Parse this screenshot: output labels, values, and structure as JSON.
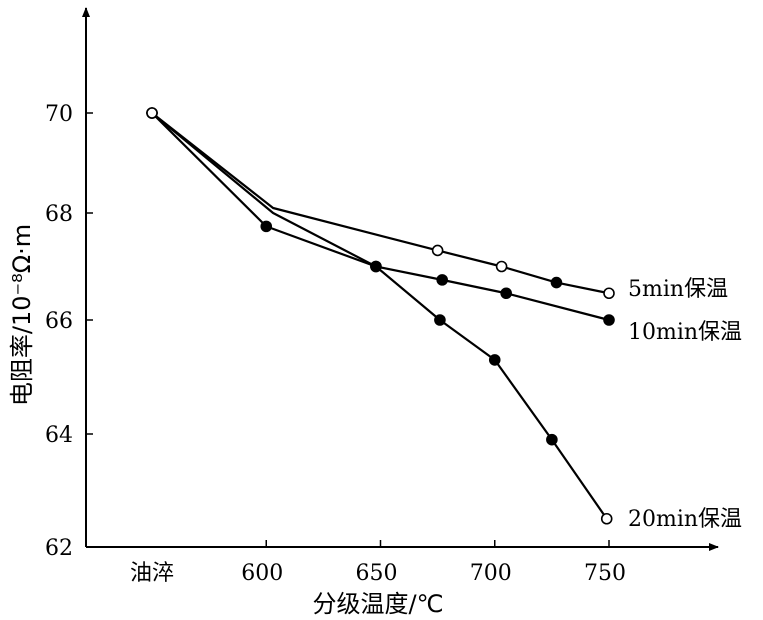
{
  "chart_data": {
    "type": "line",
    "xlabel": "分级温度/℃",
    "ylabel": "电阻率/10⁻⁸Ω·m",
    "x_ticks": [
      {
        "label": "油淬",
        "value": 550
      },
      {
        "label": "600",
        "value": 600
      },
      {
        "label": "650",
        "value": 650
      },
      {
        "label": "700",
        "value": 700
      },
      {
        "label": "750",
        "value": 750
      }
    ],
    "y_ticks": [
      62,
      64,
      66,
      68,
      70
    ],
    "xlim": [
      525,
      790
    ],
    "ylim": [
      62,
      72
    ],
    "grid": false,
    "series": [
      {
        "name": "5min保温",
        "x": [
          550,
          603,
          675,
          703,
          727,
          750
        ],
        "y": [
          70.0,
          68.1,
          67.3,
          67.0,
          66.7,
          66.5
        ],
        "markers": [
          "open",
          "none",
          "open",
          "open",
          "filled",
          "open"
        ]
      },
      {
        "name": "10min保温",
        "x": [
          550,
          600,
          648,
          677,
          705,
          750
        ],
        "y": [
          70.0,
          67.75,
          67.0,
          66.75,
          66.5,
          66.0
        ],
        "markers": [
          "open",
          "filled",
          "filled",
          "filled",
          "filled",
          "filled"
        ]
      },
      {
        "name": "20min保温",
        "x": [
          550,
          603,
          648,
          676,
          700,
          725,
          749
        ],
        "y": [
          70.0,
          68.0,
          67.0,
          66.0,
          65.3,
          63.9,
          62.5
        ],
        "markers": [
          "open",
          "none",
          "filled",
          "filled",
          "filled",
          "filled",
          "open"
        ]
      }
    ]
  }
}
